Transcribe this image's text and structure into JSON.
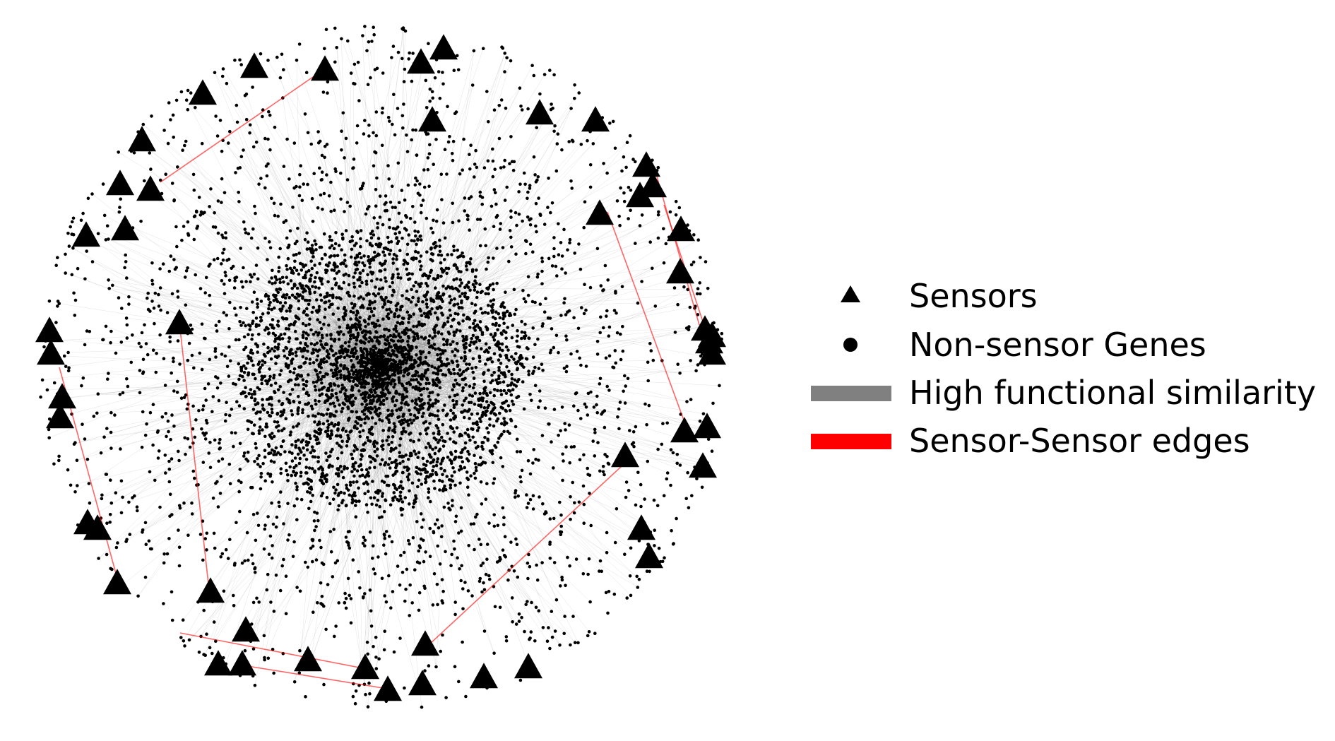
{
  "colors": {
    "background": "#ffffff",
    "node": "#000000",
    "similarity_edge": "#808080",
    "sensor_edge": "#ff0000"
  },
  "legend": {
    "sensors": {
      "label": "Sensors",
      "symbol": "triangle-icon"
    },
    "non_sensor_genes": {
      "label": "Non-sensor Genes",
      "symbol": "dot-icon"
    },
    "high_functional_similarity": {
      "label": "High functional similarity",
      "symbol": "gray-line-swatch"
    },
    "sensor_sensor_edges": {
      "label": "Sensor-Sensor edges",
      "symbol": "red-line-swatch"
    }
  }
}
